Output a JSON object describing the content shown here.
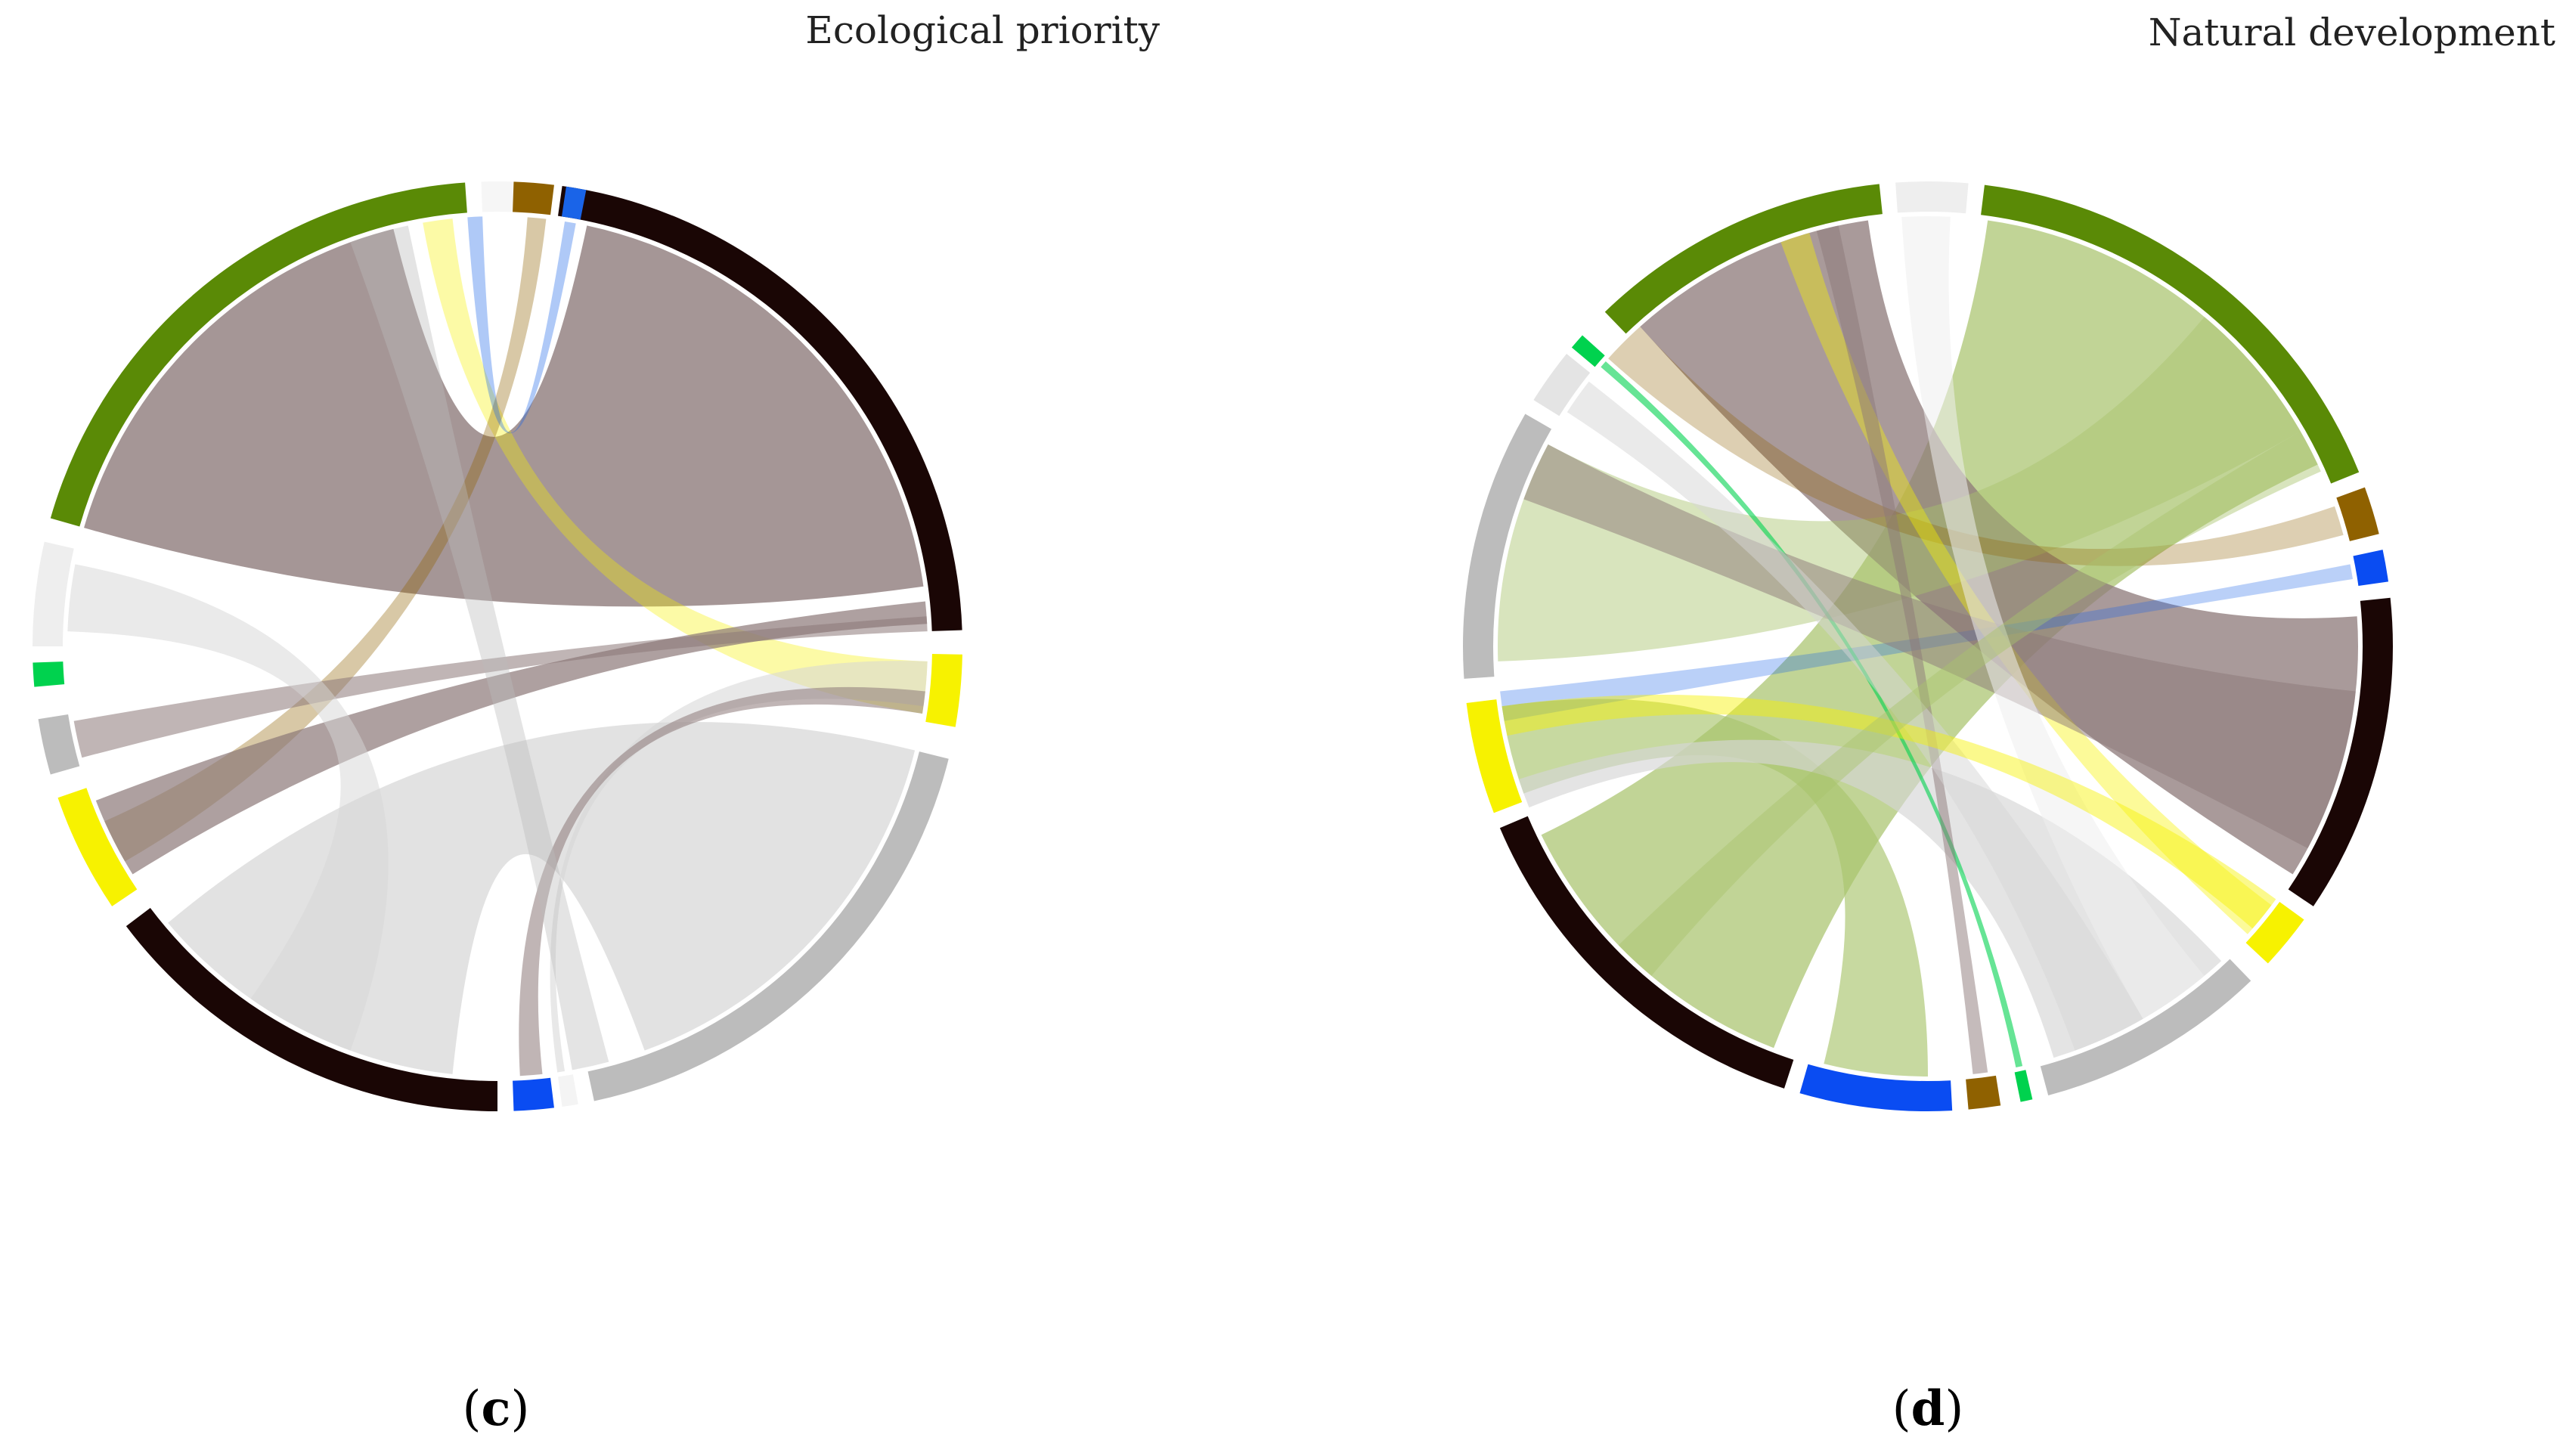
{
  "figure": {
    "panels": [
      {
        "id": "c",
        "title": "Ecological priority",
        "label_open": "(",
        "label_letter": "c",
        "label_close": ")",
        "segments": [
          {
            "name": "black",
            "color": "#1a0605",
            "start": 8,
            "end": 88
          },
          {
            "name": "yellow",
            "color": "#f7f200",
            "start": 91,
            "end": 100
          },
          {
            "name": "gray",
            "color": "#bcbcbc",
            "start": 104,
            "end": 168
          },
          {
            "name": "small-white",
            "color": "#f4f4f4",
            "start": 170,
            "end": 172
          },
          {
            "name": "blue-bottom",
            "color": "#0a4cf2",
            "start": 173,
            "end": 178
          },
          {
            "name": "black-2",
            "color": "#1a0605",
            "start": 180,
            "end": 233
          },
          {
            "name": "yellow-2",
            "color": "#f7f200",
            "start": 236,
            "end": 251
          },
          {
            "name": "gray-2",
            "color": "#bcbcbc",
            "start": 254,
            "end": 261
          },
          {
            "name": "green-small",
            "color": "#00d24e",
            "start": 265,
            "end": 268
          },
          {
            "name": "light-2",
            "color": "#eeeeee",
            "start": 270,
            "end": 283
          },
          {
            "name": "green",
            "color": "#5a8a06",
            "start": 286,
            "end": 356
          },
          {
            "name": "white-top",
            "color": "#f6f6f6",
            "start": 358,
            "end": 2
          },
          {
            "name": "brown",
            "color": "#8f6100",
            "start": 2,
            "end": 7
          },
          {
            "name": "blue-top",
            "color": "#1a64e8",
            "start": 8.5,
            "end": 11
          }
        ],
        "chords": [
          {
            "from": [
              286,
              346
            ],
            "to": [
              12,
              82
            ],
            "color": "#8c7878",
            "opacity": 0.78
          },
          {
            "from": [
              104,
              160
            ],
            "to": [
              186,
              230
            ],
            "color": "#d6d6d6",
            "opacity": 0.7
          },
          {
            "from": [
              350,
              354
            ],
            "to": [
              92,
              99
            ],
            "color": "#f7f200",
            "opacity": 0.35
          },
          {
            "from": [
              4,
              6.5
            ],
            "to": [
              240,
              246
            ],
            "color": "#8f6100",
            "opacity": 0.35
          },
          {
            "from": [
              9,
              10.5
            ],
            "to": [
              356,
              358
            ],
            "color": "#1a64e8",
            "opacity": 0.35
          },
          {
            "from": [
              238,
              249
            ],
            "to": [
              84,
              87
            ],
            "color": "#8c7878",
            "opacity": 0.7
          },
          {
            "from": [
              255,
              260
            ],
            "to": [
              86,
              88
            ],
            "color": "#8c7878",
            "opacity": 0.55
          },
          {
            "from": [
              171,
              172
            ],
            "to": [
              92,
              98
            ],
            "color": "#d6d6d6",
            "opacity": 0.55
          },
          {
            "from": [
              174,
              177
            ],
            "to": [
              96,
              99
            ],
            "color": "#8c7878",
            "opacity": 0.55
          },
          {
            "from": [
              272,
              281
            ],
            "to": [
              200,
              215
            ],
            "color": "#d6d6d6",
            "opacity": 0.5
          },
          {
            "from": [
              340,
              348
            ],
            "to": [
              165,
              170
            ],
            "color": "#bcbcbc",
            "opacity": 0.4
          }
        ]
      },
      {
        "id": "d",
        "title": "Natural development",
        "label_open": "(",
        "label_letter": "d",
        "label_close": ")",
        "segments": [
          {
            "name": "green",
            "color": "#5a8a06",
            "start": 7,
            "end": 68
          },
          {
            "name": "brown",
            "color": "#8f6100",
            "start": 70,
            "end": 76
          },
          {
            "name": "blue",
            "color": "#0a4cf2",
            "start": 78,
            "end": 82
          },
          {
            "name": "black",
            "color": "#1a0605",
            "start": 84,
            "end": 124
          },
          {
            "name": "yellow",
            "color": "#f7f200",
            "start": 126,
            "end": 133
          },
          {
            "name": "gray",
            "color": "#bcbcbc",
            "start": 136,
            "end": 165
          },
          {
            "name": "green-small",
            "color": "#00d24e",
            "start": 167,
            "end": 168.5
          },
          {
            "name": "brown-small",
            "color": "#8f6100",
            "start": 171,
            "end": 175
          },
          {
            "name": "blue-2",
            "color": "#0a4cf2",
            "start": 177,
            "end": 196
          },
          {
            "name": "black-2",
            "color": "#1a0605",
            "start": 198,
            "end": 247
          },
          {
            "name": "yellow-2",
            "color": "#f7f200",
            "start": 249,
            "end": 263
          },
          {
            "name": "gray-2",
            "color": "#bcbcbc",
            "start": 266,
            "end": 300
          },
          {
            "name": "gray-light",
            "color": "#e4e4e4",
            "start": 302,
            "end": 309
          },
          {
            "name": "green-tiny",
            "color": "#00d24e",
            "start": 310,
            "end": 312
          },
          {
            "name": "green-2",
            "color": "#5a8a06",
            "start": 316,
            "end": 354
          },
          {
            "name": "white-top",
            "color": "#eeeeee",
            "start": 356,
            "end": 5
          }
        ],
        "chords": [
          {
            "from": [
              8,
              65
            ],
            "to": [
              201,
              244
            ],
            "color": "#a9c46d",
            "opacity": 0.72
          },
          {
            "from": [
              318,
              352
            ],
            "to": [
              86,
              122
            ],
            "color": "#8c7878",
            "opacity": 0.75
          },
          {
            "from": [
              250,
              262
            ],
            "to": [
              180,
              194
            ],
            "color": "#a9c46d",
            "opacity": 0.65
          },
          {
            "from": [
              268,
              298
            ],
            "to": [
              40,
              60
            ],
            "color": "#a9c46d",
            "opacity": 0.45
          },
          {
            "from": [
              137,
              163
            ],
            "to": [
              248,
              252
            ],
            "color": "#d6d6d6",
            "opacity": 0.65
          },
          {
            "from": [
              71,
              75
            ],
            "to": [
              312,
              318
            ],
            "color": "#8f6100",
            "opacity": 0.3
          },
          {
            "from": [
              79,
              81
            ],
            "to": [
              260,
              264
            ],
            "color": "#1a64e8",
            "opacity": 0.3
          },
          {
            "from": [
              127,
              132
            ],
            "to": [
              340,
              344
            ],
            "color": "#f7f200",
            "opacity": 0.4
          },
          {
            "from": [
              167.3,
              168.2
            ],
            "to": [
              310.5,
              311.5
            ],
            "color": "#00d24e",
            "opacity": 0.6
          },
          {
            "from": [
              172,
              174
            ],
            "to": [
              345,
              348
            ],
            "color": "#8c7878",
            "opacity": 0.5
          },
          {
            "from": [
              290,
              298
            ],
            "to": [
              96,
              118
            ],
            "color": "#8c7878",
            "opacity": 0.5
          },
          {
            "from": [
              303,
              308
            ],
            "to": [
              150,
              160
            ],
            "color": "#d6d6d6",
            "opacity": 0.5
          },
          {
            "from": [
              356.5,
              3
            ],
            "to": [
              140,
              150
            ],
            "color": "#eeeeee",
            "opacity": 0.55
          },
          {
            "from": [
              258,
              262
            ],
            "to": [
              126,
              131
            ],
            "color": "#f7f200",
            "opacity": 0.45
          },
          {
            "from": [
              220,
              226
            ],
            "to": [
              60,
              66
            ],
            "color": "#a9c46d",
            "opacity": 0.45
          }
        ]
      }
    ]
  }
}
